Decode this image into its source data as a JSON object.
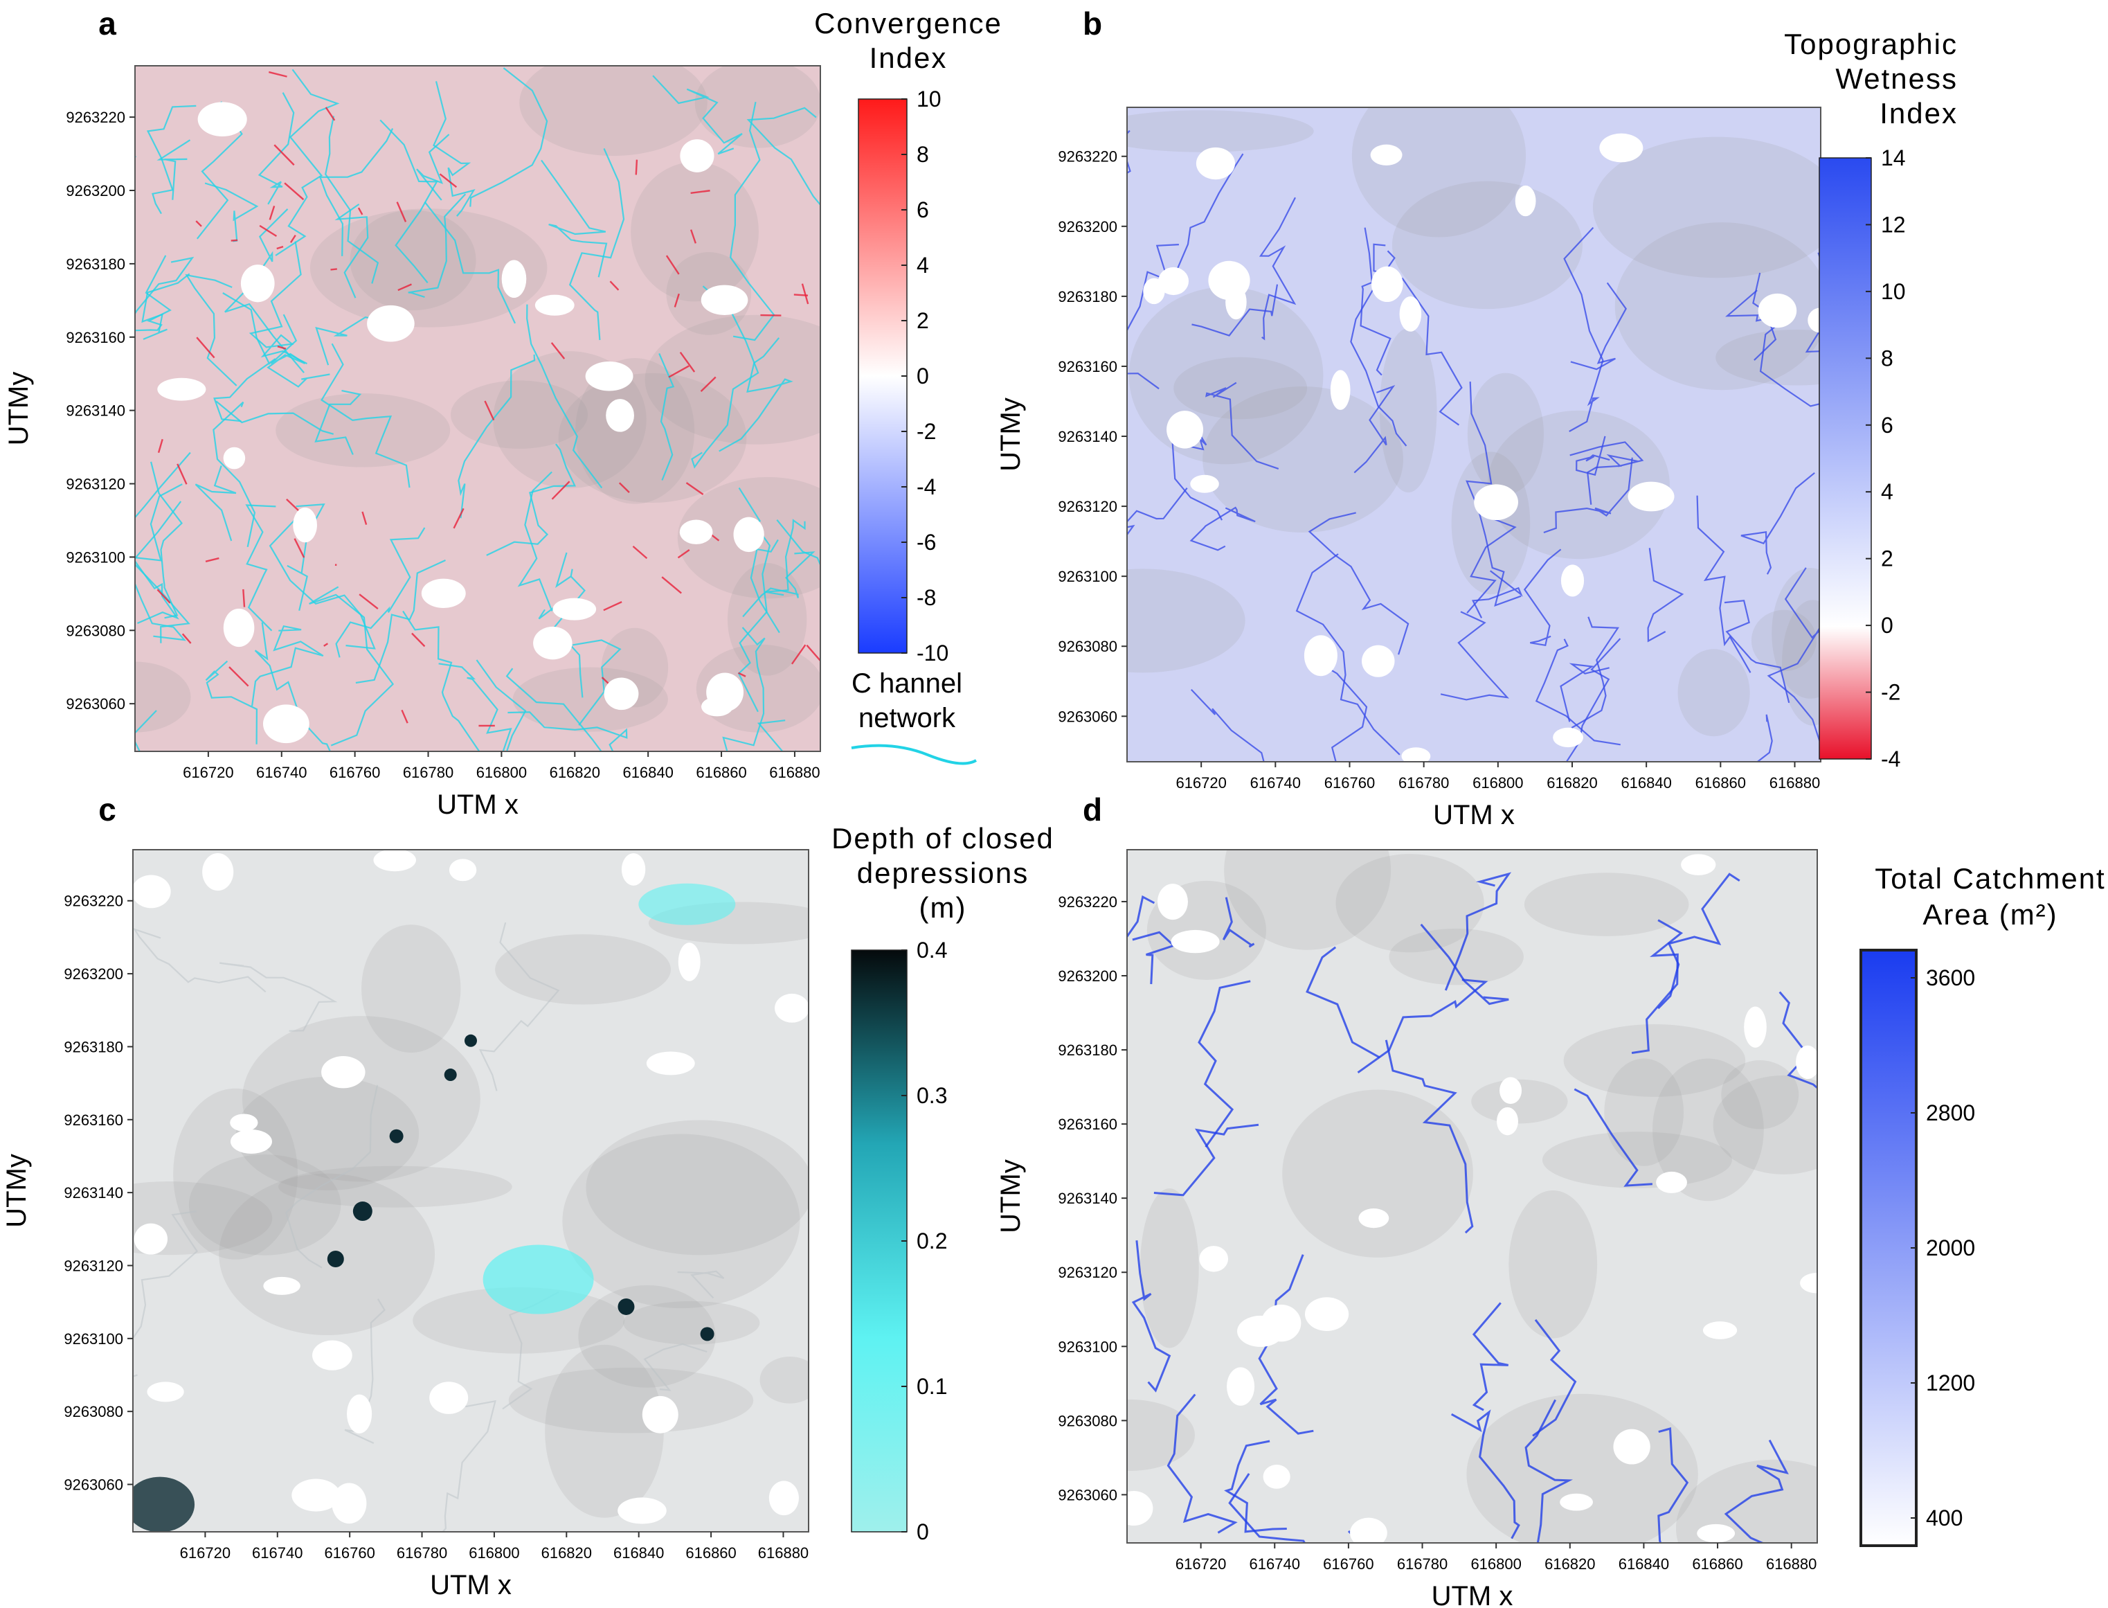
{
  "panels": [
    {
      "letter": "a",
      "xlabel": "UTM x",
      "ylabel": "UTMy",
      "x_ticks": [
        616720,
        616740,
        616760,
        616780,
        616800,
        616820,
        616840,
        616860,
        616880
      ],
      "y_ticks": [
        9263060,
        9263080,
        9263100,
        9263120,
        9263140,
        9263160,
        9263180,
        9263200,
        9263220
      ],
      "legend_title": [
        "Convergence",
        "Index"
      ],
      "legend_ticks": [
        "10",
        "8",
        "6",
        "4",
        "2",
        "0",
        "-2",
        "-4",
        "-6",
        "-8",
        "-10"
      ],
      "legend_colors": [
        "#ff1a1a",
        "#ffffff",
        "#1a3cff"
      ],
      "extra_legend": [
        "C hannel",
        "network"
      ],
      "extra_color": "#22d3e6",
      "map_tint": "#e6c9cf"
    },
    {
      "letter": "b",
      "xlabel": "UTM x",
      "ylabel": "UTMy",
      "x_ticks": [
        616720,
        616740,
        616760,
        616780,
        616800,
        616820,
        616840,
        616860,
        616880
      ],
      "y_ticks": [
        9263060,
        9263080,
        9263100,
        9263120,
        9263140,
        9263160,
        9263180,
        9263200,
        9263220
      ],
      "legend_title": [
        "Topographic",
        "Wetness",
        "Index"
      ],
      "legend_ticks": [
        "14",
        "12",
        "10",
        "8",
        "6",
        "4",
        "2",
        "0",
        "-2",
        "-4"
      ],
      "legend_colors": [
        "#2a4af0",
        "#ffffff",
        "#e8102a"
      ],
      "map_tint": "#cfd3f4"
    },
    {
      "letter": "c",
      "xlabel": "UTM x",
      "ylabel": "UTMy",
      "x_ticks": [
        616720,
        616740,
        616760,
        616780,
        616800,
        616820,
        616840,
        616860,
        616880
      ],
      "y_ticks": [
        9263060,
        9263080,
        9263100,
        9263120,
        9263140,
        9263160,
        9263180,
        9263200,
        9263220
      ],
      "legend_title": [
        "Depth of closed",
        "depressions",
        "(m)"
      ],
      "legend_ticks": [
        "0.4",
        "0.3",
        "0.2",
        "0.1",
        "0"
      ],
      "legend_colors": [
        "#050a0c",
        "#23a6b5",
        "#5ef2f2",
        "#9ff0ec"
      ],
      "map_tint": "#e3e5e6"
    },
    {
      "letter": "d",
      "xlabel": "UTM x",
      "ylabel": "UTMy",
      "x_ticks": [
        616720,
        616740,
        616760,
        616780,
        616800,
        616820,
        616840,
        616860,
        616880
      ],
      "y_ticks": [
        9263060,
        9263080,
        9263100,
        9263120,
        9263140,
        9263160,
        9263180,
        9263200,
        9263220
      ],
      "legend_title": [
        "Total Catchment",
        "Area (m²)"
      ],
      "legend_ticks": [
        "3600",
        "2800",
        "2000",
        "1200",
        "400"
      ],
      "legend_colors": [
        "#1a3cf0",
        "#ffffff"
      ],
      "map_tint": "#e3e5e6"
    }
  ]
}
